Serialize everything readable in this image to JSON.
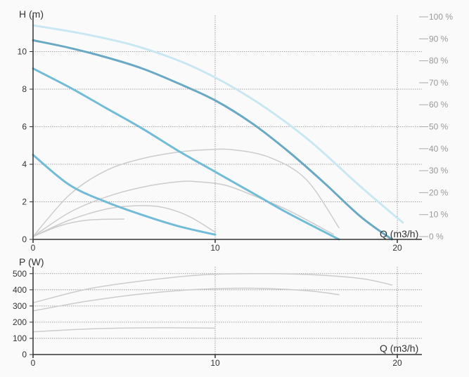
{
  "chart_data": [
    {
      "type": "line",
      "title": "",
      "ylabel": "H (m)",
      "xlabel": "Q (m3/h)",
      "xlim": [
        0,
        21
      ],
      "ylim": [
        0,
        11.5
      ],
      "x_ticks": [
        "0",
        "10",
        "20"
      ],
      "y_ticks": [
        "0",
        "2",
        "4",
        "6",
        "8",
        "10"
      ],
      "y2label": "",
      "y2lim": [
        0,
        100
      ],
      "y2_ticks": [
        "0 %",
        "10 %",
        "20 %",
        "30 %",
        "40 %",
        "50 %",
        "60 %",
        "70 %",
        "80 %",
        "90 %",
        "100 %"
      ],
      "grid": true,
      "series": [
        {
          "role": "head",
          "color": "#6aa9c4",
          "width": 3,
          "x": [
            0,
            2,
            4,
            6,
            8,
            10,
            12,
            14,
            16,
            18,
            19.7
          ],
          "y": [
            10.6,
            10.2,
            9.7,
            9.1,
            8.3,
            7.4,
            6.2,
            4.7,
            3.0,
            1.2,
            0
          ]
        },
        {
          "role": "head",
          "color": "#73bcd8",
          "width": 3,
          "x": [
            0,
            2,
            4,
            6,
            8,
            10,
            12,
            14,
            16.8
          ],
          "y": [
            9.1,
            8.1,
            7.0,
            5.9,
            4.7,
            3.6,
            2.5,
            1.4,
            0
          ]
        },
        {
          "role": "head",
          "color": "#73bcd8",
          "width": 3,
          "x": [
            0,
            2,
            4,
            6,
            8,
            10
          ],
          "y": [
            4.5,
            2.9,
            2.0,
            1.3,
            0.7,
            0.25
          ]
        },
        {
          "role": "npsh",
          "color": "#c9e7f2",
          "width": 3,
          "dashed": true,
          "x": [
            0,
            3,
            6,
            9,
            12,
            15,
            18,
            20.3
          ],
          "y": [
            11.4,
            10.9,
            10.2,
            9.1,
            7.5,
            5.4,
            2.8,
            0.9
          ]
        },
        {
          "role": "efficiency",
          "color": "#cccccc",
          "width": 1.5,
          "axis": "y2",
          "x": [
            0,
            2,
            4,
            6,
            8,
            9.5,
            11,
            13,
            15,
            16.8
          ],
          "y": [
            0,
            19,
            30,
            35.5,
            38.5,
            39.5,
            39.5,
            36,
            26,
            4
          ]
        },
        {
          "role": "efficiency",
          "color": "#cccccc",
          "width": 1.5,
          "axis": "y2",
          "x": [
            0,
            2,
            4,
            6,
            8,
            9,
            10.5,
            12,
            14,
            16.5
          ],
          "y": [
            0,
            11,
            18,
            22.5,
            25,
            25,
            23.5,
            19,
            12,
            1
          ]
        },
        {
          "role": "efficiency",
          "color": "#cccccc",
          "width": 1.5,
          "axis": "y2",
          "x": [
            0,
            2,
            4,
            5.5,
            7,
            8.5,
            10
          ],
          "y": [
            0,
            7.5,
            12.5,
            14,
            13.5,
            9.5,
            2
          ]
        },
        {
          "role": "efficiency",
          "color": "#cccccc",
          "width": 1.5,
          "axis": "y2",
          "x": [
            0,
            1.5,
            3,
            5
          ],
          "y": [
            0,
            5,
            7.5,
            8
          ]
        }
      ]
    },
    {
      "type": "line",
      "title": "",
      "ylabel": "P (W)",
      "xlabel": "Q (m3/h)",
      "xlim": [
        0,
        21
      ],
      "ylim": [
        0,
        550
      ],
      "x_ticks": [
        "0",
        "10",
        "20"
      ],
      "y_ticks": [
        "0",
        "100",
        "200",
        "300",
        "400",
        "500"
      ],
      "grid": true,
      "series": [
        {
          "role": "power",
          "color": "#cccccc",
          "width": 1.5,
          "x": [
            0,
            3,
            6,
            9,
            12,
            15,
            18,
            19.7
          ],
          "y": [
            320,
            405,
            455,
            490,
            500,
            495,
            470,
            430
          ]
        },
        {
          "role": "power",
          "color": "#cccccc",
          "width": 1.5,
          "x": [
            0,
            3,
            6,
            9,
            12,
            15,
            16.8
          ],
          "y": [
            270,
            330,
            375,
            402,
            410,
            395,
            370
          ]
        },
        {
          "role": "power",
          "color": "#cccccc",
          "width": 1.5,
          "x": [
            0,
            3,
            6,
            8,
            10
          ],
          "y": [
            140,
            158,
            165,
            165,
            163
          ]
        }
      ]
    }
  ]
}
